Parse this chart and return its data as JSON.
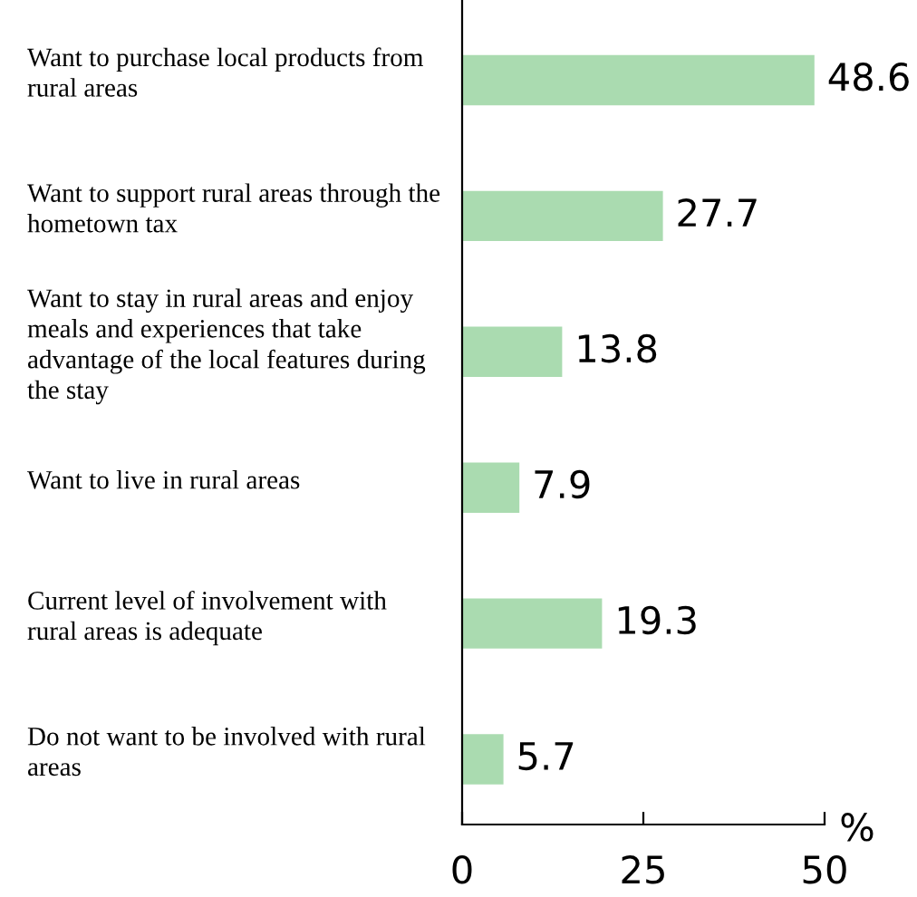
{
  "chart_data": {
    "type": "bar",
    "orientation": "horizontal",
    "xlabel": "%",
    "categories": [
      "Want to purchase local products from rural areas",
      "Want to support rural areas through the hometown tax",
      "Want to stay in rural areas and enjoy meals and experiences that take advantage of the local features during the stay",
      "Want to live in rural areas",
      "Current level of involvement with rural areas is adequate",
      "Do not want to be involved with rural areas"
    ],
    "values": [
      48.6,
      27.7,
      13.8,
      7.9,
      19.3,
      5.7
    ],
    "color": "#aadbb0",
    "xlim": [
      0,
      50
    ],
    "xticks": [
      0,
      25,
      50
    ],
    "data_labels": true,
    "grid": false,
    "legend": false
  }
}
